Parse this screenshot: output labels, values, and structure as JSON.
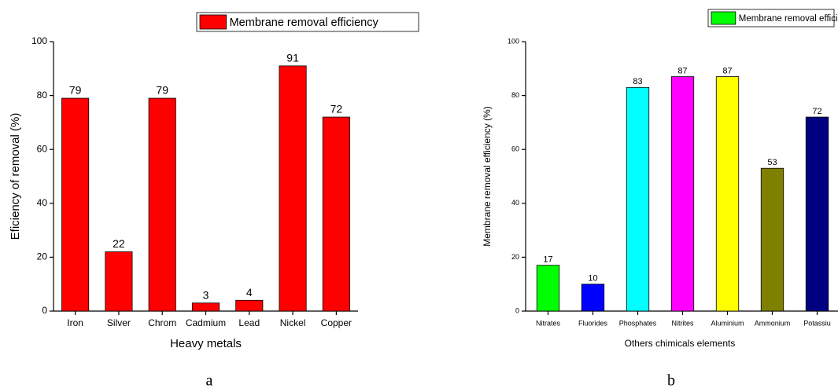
{
  "chart_data": [
    {
      "type": "bar",
      "caption": "a",
      "legend": {
        "label": "Membrane removal efficiency",
        "color": "#ff0000"
      },
      "xlabel": "Heavy metals",
      "ylabel": "Eficiency of removal (%)",
      "categories": [
        "Iron",
        "Silver",
        "Chrom",
        "Cadmium",
        "Lead",
        "Nickel",
        "Copper"
      ],
      "values": [
        79,
        22,
        79,
        3,
        4,
        91,
        72
      ],
      "colors": [
        "#ff0000",
        "#ff0000",
        "#ff0000",
        "#ff0000",
        "#ff0000",
        "#ff0000",
        "#ff0000"
      ],
      "ylim": [
        0,
        100
      ],
      "yticks": [
        0,
        20,
        40,
        60,
        80,
        100
      ]
    },
    {
      "type": "bar",
      "caption": "b",
      "legend": {
        "label": "Membrane removal efficiency",
        "color": "#00ff00"
      },
      "xlabel": "Others chimicals elements",
      "ylabel": "Membrane removal efficiency (%)",
      "categories": [
        "Nitrates",
        "Fluorides",
        "Phosphates",
        "Nitrites",
        "Aluminium",
        "Ammonium",
        "Potassiu"
      ],
      "values": [
        17,
        10,
        83,
        87,
        87,
        53,
        72
      ],
      "colors": [
        "#00ff00",
        "#0000ff",
        "#00ffff",
        "#ff00ff",
        "#ffff00",
        "#808000",
        "#000080"
      ],
      "ylim": [
        0,
        100
      ],
      "yticks": [
        0,
        20,
        40,
        60,
        80,
        100
      ]
    }
  ]
}
